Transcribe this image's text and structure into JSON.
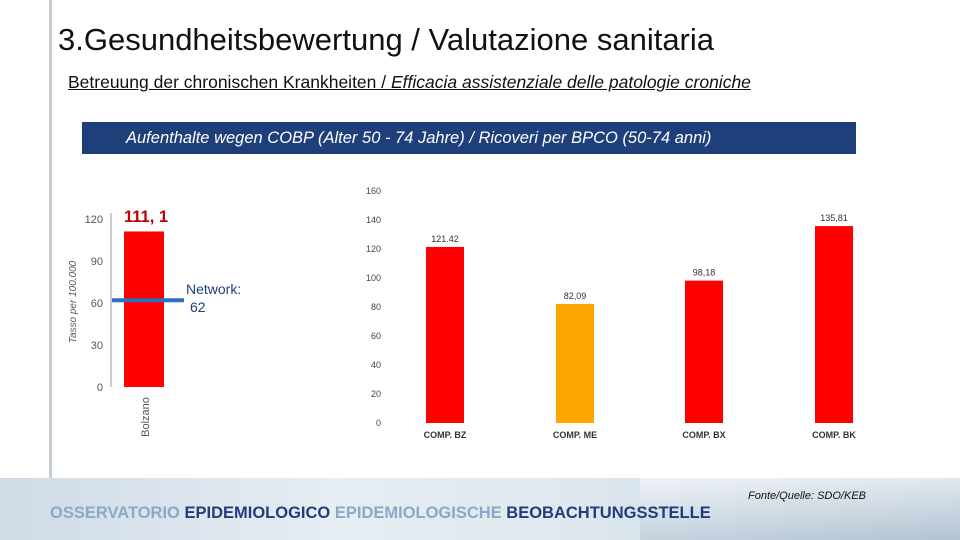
{
  "header": {
    "title": "3.Gesundheitsbewertung / Valutazione sanitaria",
    "subtitle_de": "Betreuung der chronischen Krankheiten / ",
    "subtitle_it": "Efficacia assistenziale delle patologie croniche",
    "banner": "Aufenthalte wegen COBP  (Alter 50 - 74 Jahre) / Ricoveri per BPCO  (50-74 anni)"
  },
  "footer": {
    "source": "Fonte/Quelle: SDO/KEB",
    "observatory_1": "OSSERVATORIO ",
    "observatory_2": "EPIDEMIOLOGICO ",
    "observatory_3": "EPIDEMIOLOGISCHE ",
    "observatory_4": "BEOBACHTUNGSSTELLE"
  },
  "colors": {
    "red": "#ff0000",
    "orange": "#ffa500",
    "blue": "#2f6fc0",
    "dark_red": "#c00000"
  },
  "chart_data": [
    {
      "type": "bar",
      "title": "",
      "ylabel": "Tasso per 100.000",
      "ylim": [
        0,
        120
      ],
      "yticks": [
        0,
        30,
        60,
        90,
        120
      ],
      "categories": [
        "Bolzano"
      ],
      "values": [
        111.1
      ],
      "value_label": "111, 1",
      "reference": {
        "label_line1": "Network:",
        "label_line2": "62",
        "value": 62
      }
    },
    {
      "type": "bar",
      "title": "",
      "ylim": [
        0,
        160
      ],
      "yticks": [
        0,
        20,
        40,
        60,
        80,
        100,
        120,
        140,
        160
      ],
      "categories": [
        "COMP. BZ",
        "COMP. ME",
        "COMP. BX",
        "COMP. BK"
      ],
      "values": [
        121.42,
        82.09,
        98.18,
        135.81
      ],
      "value_labels": [
        "121.42",
        "82,09",
        "98,18",
        "135,81"
      ],
      "bar_colors": [
        "#ff0000",
        "#ffa500",
        "#ff0000",
        "#ff0000"
      ]
    }
  ]
}
